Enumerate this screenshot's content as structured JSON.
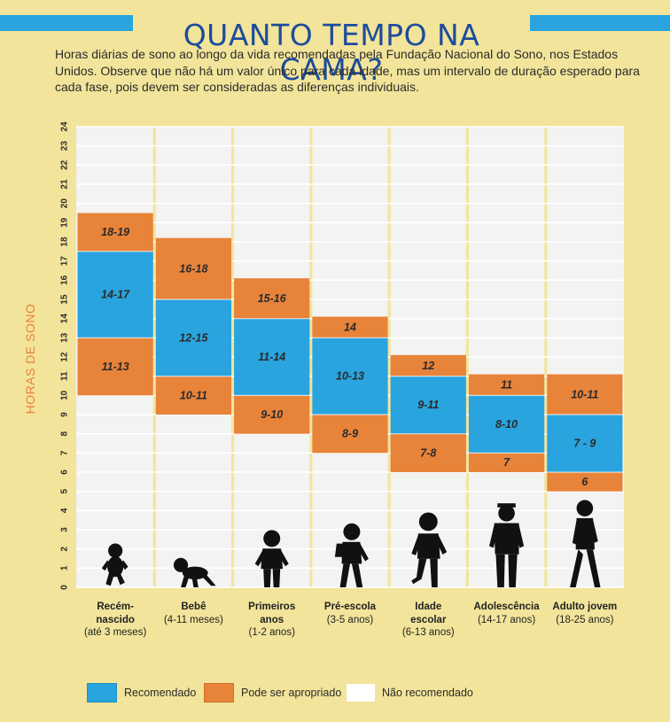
{
  "header": {
    "title": "QUANTO TEMPO NA CAMA?",
    "intro": "Horas diárias de sono ao longo da vida recomendadas pela Fundação Nacional do Sono, nos Estados Unidos. Observe que não há um valor único para cada idade, mas um intervalo de duração esperado para cada fase, pois devem ser consideradas as diferenças individuais."
  },
  "colors": {
    "background": "#f2e49a",
    "recommended": "#29a4de",
    "may_be_appropriate": "#e8833a",
    "not_recommended": "#f3f3f1",
    "title": "#1c4d9c",
    "stripe": "#29a4de"
  },
  "chart_data": {
    "type": "bar",
    "ylabel": "HORAS DE SONO",
    "ylim": [
      0,
      24
    ],
    "yticks": [
      "0",
      "1",
      "2",
      "3",
      "4",
      "5",
      "6",
      "7",
      "8",
      "9",
      "10",
      "11",
      "12",
      "13",
      "14",
      "15",
      "16",
      "17",
      "18",
      "19",
      "20",
      "21",
      "22",
      "23",
      "24"
    ],
    "grid": true,
    "legend_position": "bottom",
    "categories": [
      {
        "name": "Recém-nascido",
        "name_lines": [
          "Recém-",
          "nascido"
        ],
        "range": "(até 3 meses)",
        "icon": "newborn-silhouette-icon",
        "low_bar": [
          10,
          13
        ],
        "low_label": "11-13",
        "rec": [
          13,
          17.5
        ],
        "rec_label": "14-17",
        "high_bar": [
          17.5,
          19.5
        ],
        "high_label": "18-19"
      },
      {
        "name": "Bebê",
        "name_lines": [
          "Bebê"
        ],
        "range": "(4-11 meses)",
        "icon": "crawling-baby-silhouette-icon",
        "low_bar": [
          9,
          11
        ],
        "low_label": "10-11",
        "rec": [
          11,
          15
        ],
        "rec_label": "12-15",
        "high_bar": [
          15,
          18.2
        ],
        "high_label": "16-18"
      },
      {
        "name": "Primeiros anos",
        "name_lines": [
          "Primeiros",
          "anos"
        ],
        "range": "(1-2 anos)",
        "icon": "toddler-silhouette-icon",
        "low_bar": [
          8,
          10
        ],
        "low_label": "9-10",
        "rec": [
          10,
          14
        ],
        "rec_label": "11-14",
        "high_bar": [
          14,
          16.1
        ],
        "high_label": "15-16"
      },
      {
        "name": "Pré-escola",
        "name_lines": [
          "Pré-escola"
        ],
        "range": "(3-5 anos)",
        "icon": "preschooler-silhouette-icon",
        "low_bar": [
          7,
          9
        ],
        "low_label": "8-9",
        "rec": [
          9,
          13
        ],
        "rec_label": "10-13",
        "high_bar": [
          13,
          14.1
        ],
        "high_label": "14"
      },
      {
        "name": "Idade escolar",
        "name_lines": [
          "Idade",
          "escolar"
        ],
        "range": "(6-13 anos)",
        "icon": "schoolchild-silhouette-icon",
        "low_bar": [
          6,
          8
        ],
        "low_label": "7-8",
        "rec": [
          8,
          11
        ],
        "rec_label": "9-11",
        "high_bar": [
          11,
          12.1
        ],
        "high_label": "12"
      },
      {
        "name": "Adolescência",
        "name_lines": [
          "Adolescência"
        ],
        "range": "(14-17 anos)",
        "icon": "teenager-silhouette-icon",
        "low_bar": [
          6,
          7
        ],
        "low_label": "7",
        "rec": [
          7,
          10
        ],
        "rec_label": "8-10",
        "high_bar": [
          10,
          11.1
        ],
        "high_label": "11"
      },
      {
        "name": "Adulto jovem",
        "name_lines": [
          "Adulto jovem"
        ],
        "range": "(18-25 anos)",
        "icon": "young-adult-silhouette-icon",
        "low_bar": [
          5,
          6
        ],
        "low_label": "6",
        "rec": [
          6,
          9
        ],
        "rec_label": "7 - 9",
        "high_bar": [
          9,
          11.1
        ],
        "high_label": "10-11"
      }
    ]
  },
  "legend": {
    "recommended": "Recomendado",
    "may_be_appropriate": "Pode ser apropriado",
    "not_recommended": "Não recomendado"
  }
}
